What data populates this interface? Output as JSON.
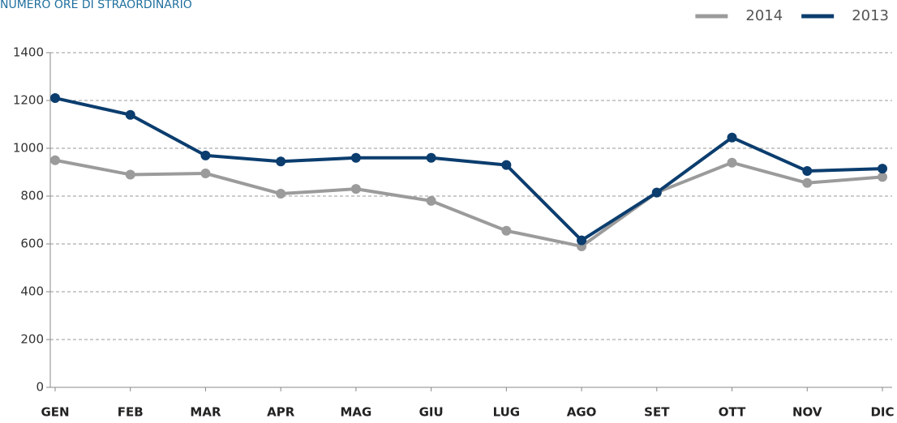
{
  "chart_data": {
    "type": "line",
    "title": "NUMERO ORE DI STRAORDINARIO",
    "categories": [
      "GEN",
      "FEB",
      "MAR",
      "APR",
      "MAG",
      "GIU",
      "LUG",
      "AGO",
      "SET",
      "OTT",
      "NOV",
      "DIC"
    ],
    "series": [
      {
        "name": "2014",
        "color": "#9b9b9b",
        "values": [
          950,
          890,
          895,
          810,
          830,
          780,
          655,
          590,
          815,
          940,
          855,
          880
        ]
      },
      {
        "name": "2013",
        "color": "#0b3d6e",
        "values": [
          1210,
          1140,
          970,
          945,
          960,
          960,
          930,
          615,
          815,
          1045,
          905,
          915
        ]
      }
    ],
    "ylim": [
      0,
      1400
    ],
    "yticks": [
      0,
      200,
      400,
      600,
      800,
      1000,
      1200,
      1400
    ],
    "grid": true,
    "legend": "top-right"
  }
}
